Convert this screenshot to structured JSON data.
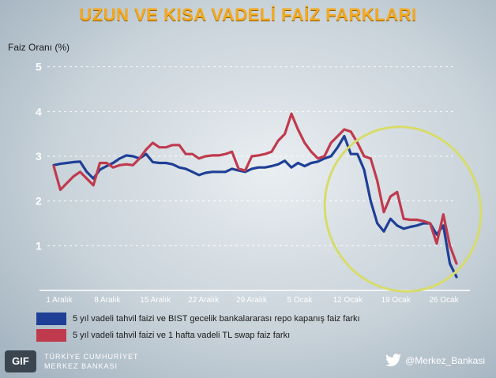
{
  "chart_data": {
    "type": "line",
    "title": "UZUN VE KISA VADELİ FAİZ FARKLARI",
    "ylabel": "Faiz Oranı (%)",
    "xlabel": "",
    "ylim": [
      0,
      5.4
    ],
    "y_ticks": [
      1,
      2,
      3,
      4,
      5
    ],
    "grid": "dashed horizontal",
    "x_tick_labels": [
      "1 Aralık",
      "8 Aralık",
      "15 Aralık",
      "22 Aralık",
      "29 Aralık",
      "5 Ocak",
      "12 Ocak",
      "19 Ocak",
      "26 Ocak"
    ],
    "series": [
      {
        "name": "5 yıl vadeli tahvil faizi ve BIST gecelik bankalararası repo kapanış faiz farkı",
        "color": "#1f3f96",
        "values": [
          2.8,
          2.83,
          2.85,
          2.87,
          2.88,
          2.65,
          2.5,
          2.7,
          2.78,
          2.85,
          2.95,
          3.02,
          3.0,
          2.95,
          3.05,
          2.87,
          2.85,
          2.85,
          2.82,
          2.75,
          2.72,
          2.65,
          2.58,
          2.63,
          2.65,
          2.65,
          2.65,
          2.72,
          2.68,
          2.65,
          2.72,
          2.75,
          2.75,
          2.78,
          2.82,
          2.9,
          2.75,
          2.85,
          2.78,
          2.85,
          2.88,
          2.95,
          3.0,
          3.2,
          3.45,
          3.05,
          3.05,
          2.7,
          2.0,
          1.5,
          1.32,
          1.6,
          1.45,
          1.38,
          1.42,
          1.45,
          1.5,
          1.5,
          1.25,
          1.45,
          0.6,
          0.3
        ]
      },
      {
        "name": "5 yıl vadeli tahvil faizi ve 1 hafta vadeli TL swap faiz farkı",
        "color": "#c03a4e",
        "values": [
          2.78,
          2.25,
          2.4,
          2.55,
          2.65,
          2.5,
          2.35,
          2.85,
          2.85,
          2.75,
          2.8,
          2.82,
          2.8,
          2.95,
          3.15,
          3.3,
          3.2,
          3.2,
          3.25,
          3.25,
          3.05,
          3.05,
          2.95,
          3.0,
          3.02,
          3.02,
          3.05,
          3.1,
          2.72,
          2.68,
          3.0,
          3.02,
          3.05,
          3.1,
          3.35,
          3.5,
          3.95,
          3.6,
          3.3,
          3.1,
          2.95,
          3.0,
          3.3,
          3.45,
          3.6,
          3.55,
          3.3,
          3.0,
          2.95,
          2.45,
          1.75,
          2.1,
          2.2,
          1.6,
          1.58,
          1.58,
          1.55,
          1.5,
          1.05,
          1.7,
          1.0,
          0.6
        ]
      }
    ],
    "annotation": "yellow ellipse highlighting mid-January decline"
  },
  "footer": {
    "logo_badge": "GIF",
    "bank_line1": "TÜRKİYE CUMHURİYET",
    "bank_line2": "MERKEZ BANKASI",
    "twitter_handle": "@Merkez_Bankasi"
  }
}
